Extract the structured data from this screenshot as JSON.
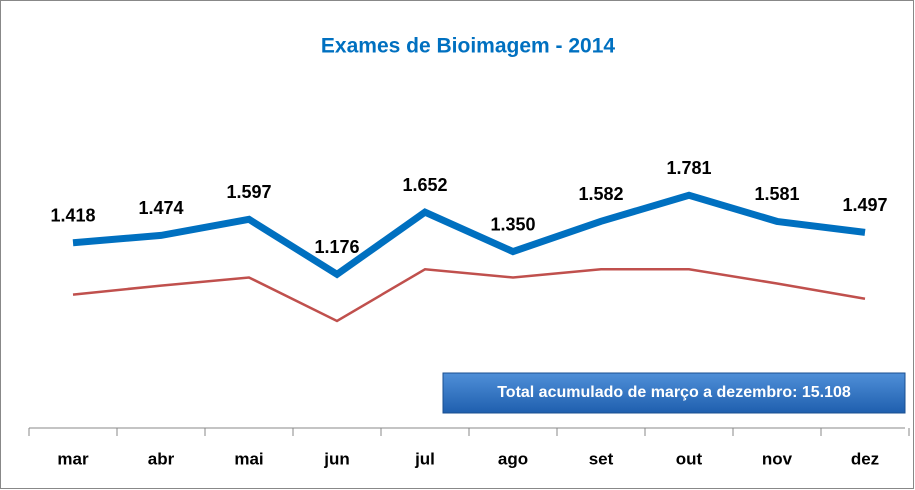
{
  "chart_data": {
    "type": "line",
    "title": "Exames de Bioimagem - 2014",
    "categories": [
      "mar",
      "abr",
      "mai",
      "jun",
      "jul",
      "ago",
      "set",
      "out",
      "nov",
      "dez"
    ],
    "series": [
      {
        "color": "#0070c0",
        "values": [
          1418,
          1474,
          1597,
          1176,
          1652,
          1350,
          1582,
          1781,
          1581,
          1497
        ],
        "value_labels": [
          "1.418",
          "1.474",
          "1.597",
          "1.176",
          "1.652",
          "1.350",
          "1.582",
          "1.781",
          "1.581",
          "1.497"
        ]
      },
      {
        "color": "#c0504d",
        "values": [
          1021,
          1090,
          1152,
          819,
          1215,
          1152,
          1215,
          1215,
          1106,
          989
        ]
      }
    ],
    "ylim": [
      0,
      3000
    ],
    "annotation": "Total acumulado  de março a dezembro:  15.108"
  }
}
